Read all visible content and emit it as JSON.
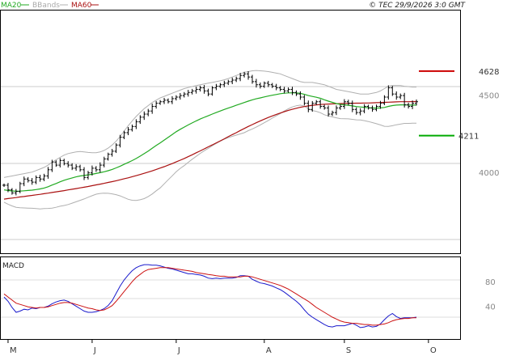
{
  "legend": {
    "ma20": {
      "label": "MA20",
      "color": "#22aa22"
    },
    "bbands": {
      "label": "BBands",
      "color": "#b0b0b0"
    },
    "ma60": {
      "label": "MA60",
      "color": "#aa1111"
    }
  },
  "copyright": "© TEC 29/9/2026 3:0 GMT",
  "macd_label": "MACD",
  "chart_data": [
    {
      "type": "candlestick",
      "title": "",
      "y_axis": {
        "ticks": [
          {
            "label": "4500",
            "value": 4500
          },
          {
            "label": "4000",
            "value": 4000
          }
        ],
        "range": [
          3450,
          5020
        ]
      },
      "x_axis": {
        "month_labels": [
          {
            "label": "M",
            "index": 1
          },
          {
            "label": "J",
            "index": 22
          },
          {
            "label": "J",
            "index": 43
          },
          {
            "label": "A",
            "index": 65
          },
          {
            "label": "S",
            "index": 85
          },
          {
            "label": "O",
            "index": 106
          }
        ],
        "count": 104
      },
      "levels": {
        "resistance": {
          "label": "4628",
          "value": 4628,
          "color": "#cc0000"
        },
        "support": {
          "label": "4211",
          "value": 4211,
          "color": "#00aa00"
        }
      },
      "close": [
        3890,
        3860,
        3840,
        3850,
        3900,
        3930,
        3920,
        3910,
        3940,
        3930,
        3950,
        3990,
        4040,
        4020,
        4050,
        4030,
        4020,
        4000,
        4010,
        3990,
        3940,
        3970,
        4000,
        3990,
        4020,
        4060,
        4090,
        4110,
        4150,
        4200,
        4230,
        4250,
        4270,
        4300,
        4330,
        4350,
        4370,
        4400,
        4420,
        4430,
        4440,
        4430,
        4450,
        4460,
        4470,
        4480,
        4490,
        4500,
        4510,
        4520,
        4500,
        4480,
        4520,
        4530,
        4540,
        4550,
        4560,
        4570,
        4580,
        4600,
        4610,
        4590,
        4560,
        4540,
        4530,
        4550,
        4540,
        4530,
        4520,
        4510,
        4500,
        4510,
        4490,
        4480,
        4460,
        4420,
        4380,
        4420,
        4430,
        4400,
        4390,
        4350,
        4360,
        4390,
        4400,
        4430,
        4420,
        4380,
        4360,
        4370,
        4400,
        4390,
        4380,
        4400,
        4420,
        4460,
        4520,
        4480,
        4460,
        4470,
        4410,
        4400,
        4420,
        4430
      ],
      "ma20": [
        3860,
        3856,
        3853,
        3851,
        3852,
        3854,
        3856,
        3858,
        3862,
        3866,
        3872,
        3880,
        3891,
        3901,
        3912,
        3922,
        3930,
        3937,
        3944,
        3950,
        3953,
        3957,
        3961,
        3966,
        3971,
        3977,
        3984,
        3992,
        4002,
        4013,
        4025,
        4037,
        4049,
        4063,
        4078,
        4094,
        4111,
        4129,
        4147,
        4164,
        4182,
        4200,
        4218,
        4236,
        4252,
        4266,
        4280,
        4293,
        4306,
        4318,
        4329,
        4339,
        4350,
        4360,
        4370,
        4380,
        4389,
        4398,
        4407,
        4416,
        4425,
        4434,
        4442,
        4449,
        4455,
        4461,
        4467,
        4472,
        4477,
        4482,
        4485,
        4487,
        4488,
        4487,
        4484,
        4478,
        4470,
        4464,
        4459,
        4452,
        4443,
        4434,
        4426,
        4418,
        4413,
        4410,
        4407,
        4403,
        4399,
        4396,
        4394,
        4391,
        4390,
        4389,
        4390,
        4393,
        4400,
        4405,
        4408,
        4410,
        4410,
        4409,
        4408,
        4408
      ],
      "ma60": [
        3800,
        3804,
        3807,
        3810,
        3814,
        3817,
        3821,
        3824,
        3828,
        3831,
        3835,
        3839,
        3843,
        3847,
        3851,
        3855,
        3860,
        3864,
        3868,
        3873,
        3877,
        3882,
        3887,
        3892,
        3897,
        3902,
        3908,
        3913,
        3919,
        3925,
        3932,
        3938,
        3945,
        3952,
        3959,
        3967,
        3975,
        3983,
        3992,
        4001,
        4010,
        4020,
        4030,
        4041,
        4052,
        4063,
        4075,
        4087,
        4100,
        4112,
        4125,
        4138,
        4151,
        4164,
        4177,
        4190,
        4204,
        4217,
        4230,
        4244,
        4257,
        4270,
        4282,
        4294,
        4306,
        4317,
        4328,
        4338,
        4348,
        4357,
        4366,
        4374,
        4381,
        4388,
        4394,
        4399,
        4403,
        4407,
        4410,
        4412,
        4414,
        4415,
        4416,
        4417,
        4418,
        4419,
        4420,
        4420,
        4421,
        4421,
        4422,
        4422,
        4423,
        4424,
        4425,
        4426,
        4427,
        4428,
        4429,
        4430,
        4430,
        4430,
        4431,
        4431
      ],
      "bb_upper": [
        3940,
        3945,
        3950,
        3955,
        3960,
        3965,
        3970,
        3975,
        3985,
        3995,
        4005,
        4020,
        4040,
        4055,
        4070,
        4085,
        4095,
        4100,
        4105,
        4108,
        4105,
        4102,
        4100,
        4100,
        4105,
        4115,
        4130,
        4150,
        4175,
        4205,
        4240,
        4275,
        4305,
        4335,
        4360,
        4385,
        4405,
        4425,
        4440,
        4455,
        4465,
        4475,
        4485,
        4495,
        4505,
        4515,
        4522,
        4528,
        4535,
        4540,
        4545,
        4550,
        4555,
        4560,
        4565,
        4572,
        4580,
        4590,
        4600,
        4610,
        4620,
        4625,
        4630,
        4632,
        4630,
        4628,
        4625,
        4620,
        4615,
        4610,
        4600,
        4590,
        4580,
        4570,
        4560,
        4555,
        4555,
        4555,
        4550,
        4545,
        4540,
        4530,
        4520,
        4510,
        4505,
        4500,
        4495,
        4490,
        4485,
        4480,
        4480,
        4480,
        4485,
        4490,
        4500,
        4515,
        4530,
        4535,
        4535,
        4535,
        4530,
        4528,
        4525,
        4525
      ],
      "bb_lower": [
        3780,
        3767,
        3756,
        3747,
        3744,
        3743,
        3742,
        3741,
        3739,
        3737,
        3739,
        3740,
        3742,
        3747,
        3754,
        3759,
        3765,
        3774,
        3783,
        3792,
        3801,
        3812,
        3822,
        3832,
        3837,
        3839,
        3838,
        3834,
        3829,
        3821,
        3810,
        3799,
        3793,
        3791,
        3796,
        3803,
        3817,
        3833,
        3854,
        3873,
        3899,
        3925,
        3951,
        3977,
        3999,
        4017,
        4038,
        4058,
        4077,
        4096,
        4113,
        4128,
        4145,
        4160,
        4175,
        4188,
        4198,
        4206,
        4214,
        4222,
        4230,
        4243,
        4254,
        4266,
        4280,
        4294,
        4309,
        4324,
        4339,
        4354,
        4370,
        4384,
        4396,
        4404,
        4408,
        4401,
        4385,
        4373,
        4368,
        4359,
        4346,
        4338,
        4332,
        4326,
        4321,
        4320,
        4319,
        4316,
        4313,
        4312,
        4308,
        4302,
        4295,
        4288,
        4280,
        4271,
        4270,
        4275,
        4281,
        4285,
        4290,
        4290,
        4291,
        4291
      ]
    },
    {
      "type": "line",
      "title": "MACD",
      "y_axis": {
        "ticks": [
          {
            "label": "80",
            "value": 80
          },
          {
            "label": "40",
            "value": 40
          }
        ],
        "range": [
          -15,
          120
        ]
      },
      "series": [
        {
          "name": "",
          "color": "#1a1acc",
          "values": [
            55,
            48,
            38,
            30,
            32,
            35,
            34,
            37,
            36,
            38,
            38,
            40,
            44,
            47,
            49,
            50,
            48,
            44,
            40,
            36,
            32,
            30,
            30,
            31,
            33,
            36,
            41,
            49,
            61,
            73,
            83,
            91,
            98,
            103,
            106,
            108,
            108,
            107,
            107,
            106,
            104,
            102,
            101,
            99,
            97,
            95,
            93,
            93,
            92,
            91,
            89,
            86,
            85,
            86,
            85,
            86,
            86,
            86,
            87,
            90,
            90,
            89,
            84,
            81,
            78,
            77,
            75,
            73,
            70,
            67,
            63,
            58,
            53,
            48,
            42,
            34,
            27,
            22,
            18,
            14,
            10,
            7,
            6,
            8,
            8,
            8,
            10,
            12,
            9,
            5,
            6,
            8,
            6,
            7,
            11,
            18,
            24,
            28,
            23,
            20,
            21,
            21,
            21,
            22
          ]
        },
        {
          "name": "",
          "color": "#cc1111",
          "values": [
            60,
            55,
            50,
            45,
            43,
            41,
            39,
            38,
            37,
            38,
            38,
            39,
            41,
            43,
            45,
            46,
            46,
            45,
            43,
            41,
            39,
            37,
            36,
            34,
            33,
            34,
            37,
            41,
            48,
            56,
            64,
            72,
            80,
            87,
            92,
            97,
            100,
            101,
            102,
            103,
            103,
            103,
            102,
            101,
            100,
            99,
            98,
            97,
            95,
            94,
            93,
            92,
            91,
            90,
            89,
            89,
            88,
            88,
            88,
            88,
            89,
            89,
            88,
            86,
            84,
            82,
            80,
            78,
            76,
            74,
            71,
            68,
            64,
            60,
            56,
            52,
            48,
            43,
            38,
            34,
            30,
            26,
            22,
            19,
            16,
            14,
            13,
            12,
            12,
            11,
            10,
            10,
            9,
            9,
            10,
            11,
            13,
            16,
            18,
            19,
            20,
            20,
            21,
            21
          ]
        }
      ]
    }
  ]
}
